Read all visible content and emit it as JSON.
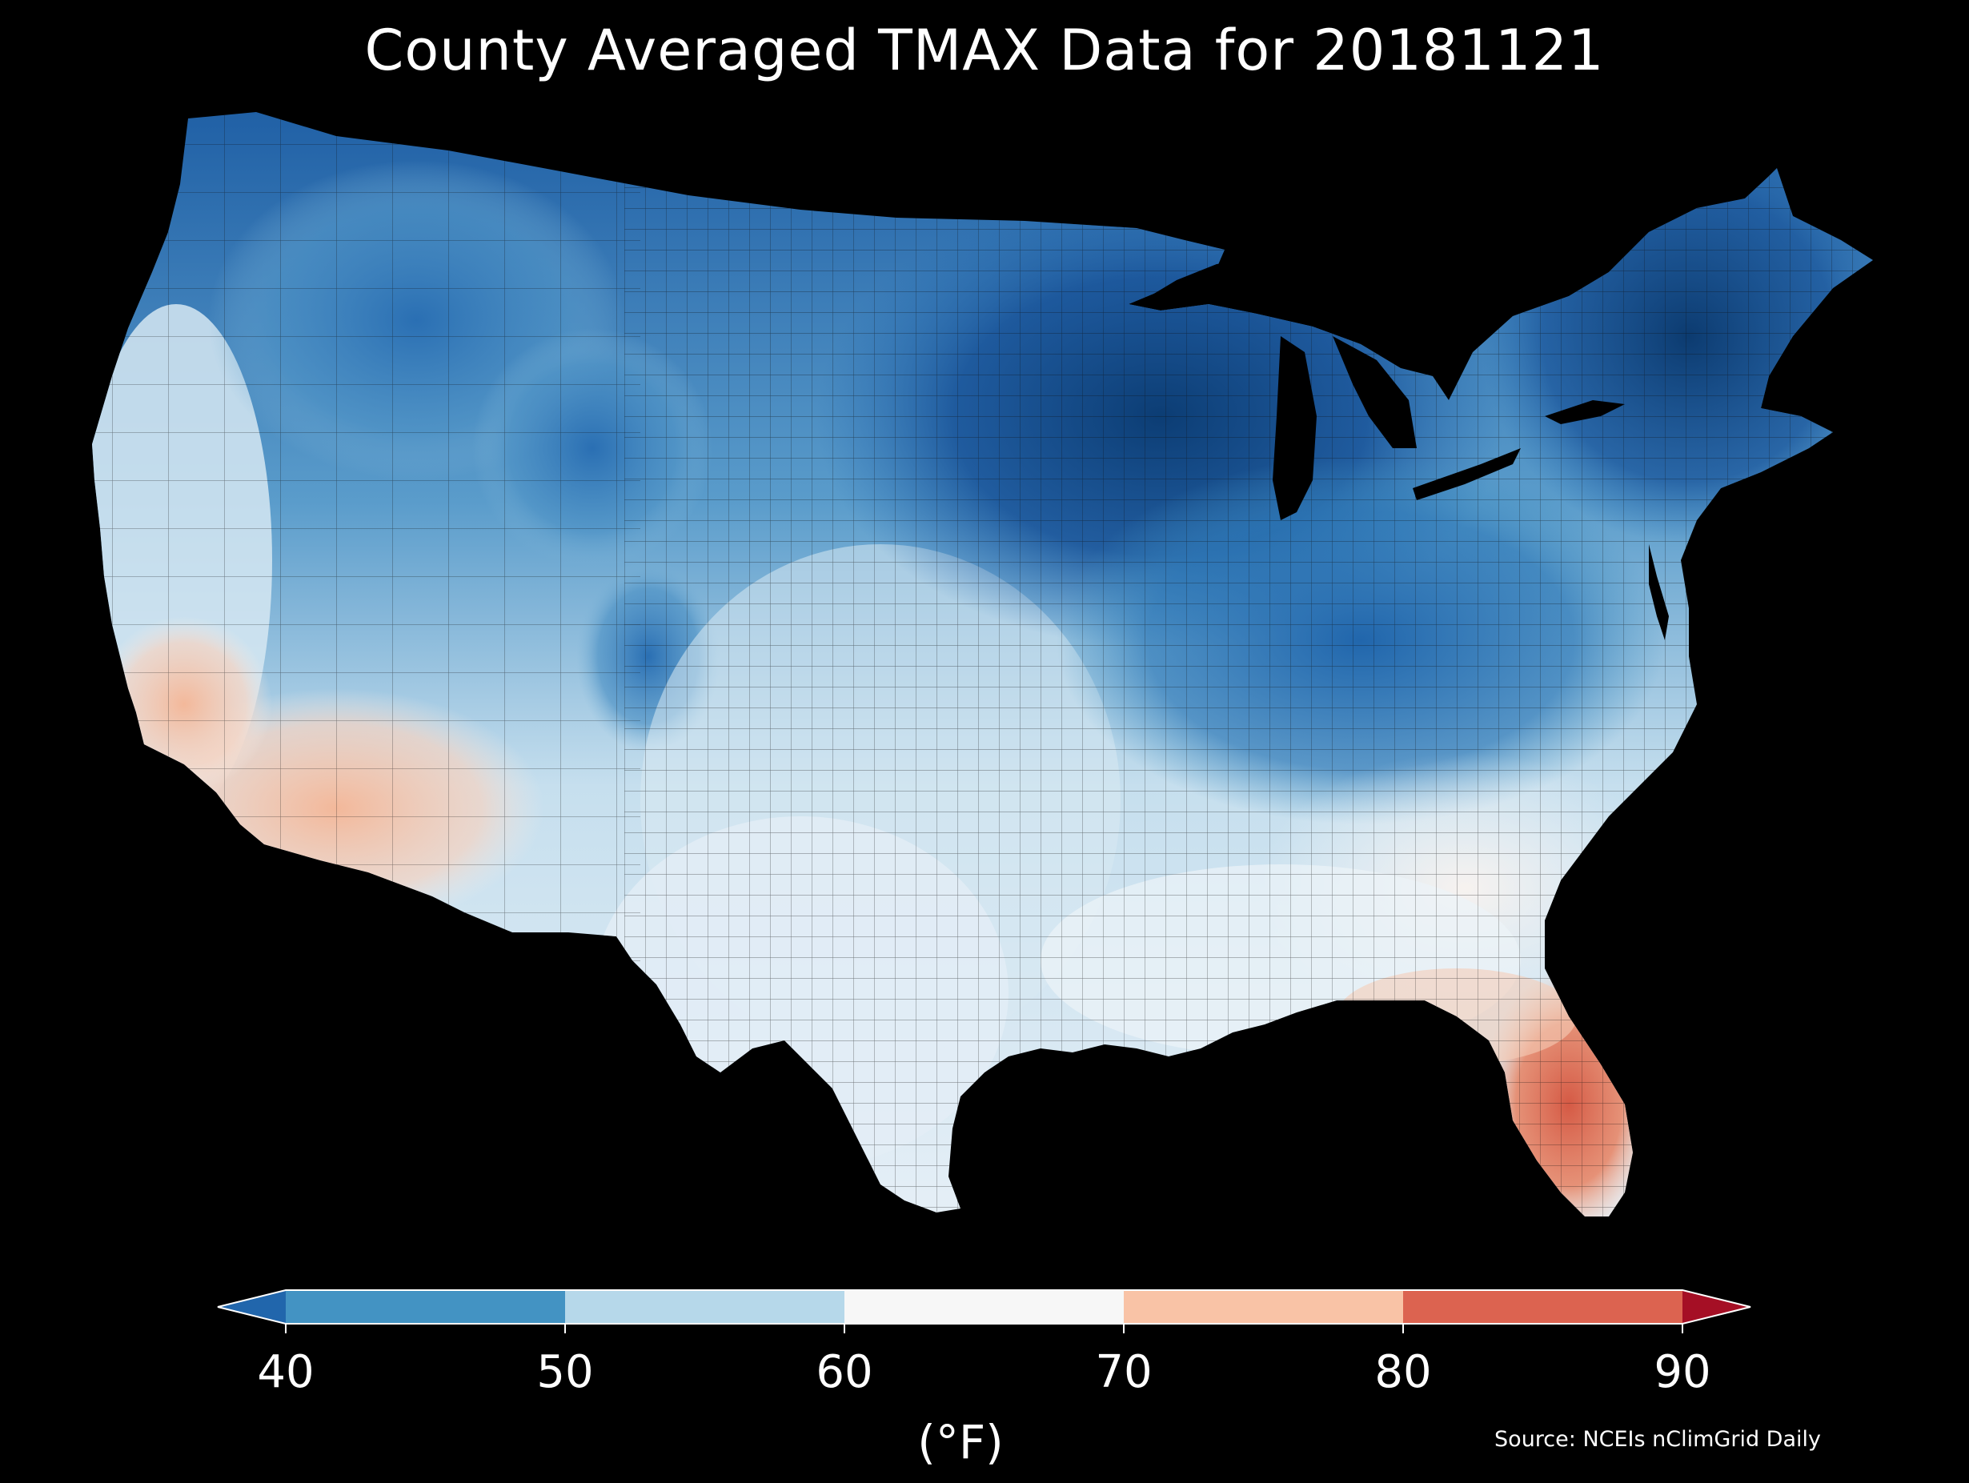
{
  "title": "County Averaged TMAX Data for 20181121",
  "colorbar": {
    "ticks": [
      "40",
      "50",
      "60",
      "70",
      "80",
      "90"
    ],
    "unit": "(°F)",
    "min": 40,
    "max": 90,
    "extend": "both",
    "bins": [
      {
        "from": 40,
        "to": 50,
        "color": "#4393c3"
      },
      {
        "from": 50,
        "to": 60,
        "color": "#b6d8ea"
      },
      {
        "from": 60,
        "to": 70,
        "color": "#f7f7f7"
      },
      {
        "from": 70,
        "to": 80,
        "color": "#f9c3a6"
      },
      {
        "from": 80,
        "to": 90,
        "color": "#dc6350"
      }
    ],
    "under_color": "#2166ac",
    "over_color": "#a50f25"
  },
  "source": "Source: NCEIs nClimGrid Daily",
  "map": {
    "background": "#000000",
    "county_border_color": "#111111",
    "regions": [
      {
        "name": "upper-midwest",
        "tmax_f": 33
      },
      {
        "name": "northeast-maine",
        "tmax_f": 33
      },
      {
        "name": "northern-rockies",
        "tmax_f": 42
      },
      {
        "name": "ohio-valley",
        "tmax_f": 42
      },
      {
        "name": "great-plains",
        "tmax_f": 58
      },
      {
        "name": "texas",
        "tmax_f": 62
      },
      {
        "name": "southeast",
        "tmax_f": 66
      },
      {
        "name": "southwest-desert",
        "tmax_f": 74
      },
      {
        "name": "south-florida",
        "tmax_f": 84
      }
    ]
  }
}
